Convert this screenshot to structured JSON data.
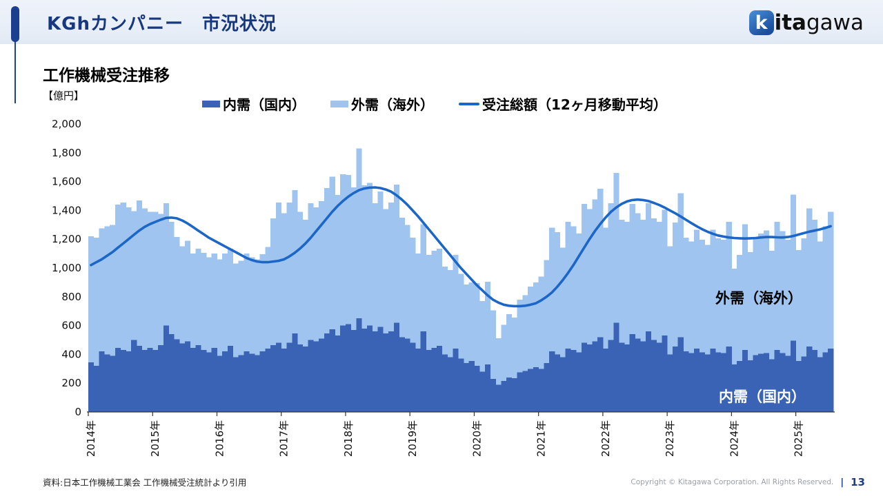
{
  "header": {
    "title": "KGhカンパニー　市況状況",
    "logo": {
      "k": "k",
      "ita": "ita",
      "gawa": "gawa"
    }
  },
  "chart": {
    "title": "工作機械受注推移",
    "unit_label": "【億円】",
    "inplot_labels": {
      "gaiju": "外需（海外）",
      "naiju": "内需（国内）"
    }
  },
  "chart_data": {
    "type": "bar",
    "combo": "stacked-monthly-bars-with-line",
    "title": "工作機械受注推移",
    "ylabel": "【億円】",
    "ylim": [
      0,
      2000
    ],
    "ytick_step": 200,
    "y_tick_labels": [
      "0",
      "200",
      "400",
      "600",
      "800",
      "1,000",
      "1,200",
      "1,400",
      "1,600",
      "1,800",
      "2,000"
    ],
    "x_start": "2014-01",
    "x_end": "2025-07",
    "months_per_year": 12,
    "categories_years": [
      "2014年",
      "2015年",
      "2016年",
      "2017年",
      "2018年",
      "2019年",
      "2020年",
      "2021年",
      "2022年",
      "2023年",
      "2024年",
      "2025年"
    ],
    "grid": false,
    "legend_position": "top",
    "series": [
      {
        "name": "内需（国内）",
        "type": "bar",
        "stack": true,
        "color": "#3a62b5",
        "values": [
          345,
          320,
          420,
          400,
          390,
          445,
          430,
          420,
          500,
          460,
          430,
          445,
          430,
          465,
          600,
          540,
          505,
          475,
          490,
          445,
          465,
          430,
          415,
          445,
          390,
          420,
          460,
          380,
          395,
          420,
          405,
          395,
          420,
          440,
          465,
          480,
          440,
          480,
          545,
          470,
          455,
          500,
          490,
          510,
          545,
          575,
          530,
          600,
          610,
          570,
          650,
          580,
          600,
          560,
          590,
          545,
          560,
          620,
          520,
          510,
          480,
          440,
          560,
          430,
          445,
          460,
          400,
          380,
          440,
          370,
          340,
          355,
          320,
          280,
          330,
          230,
          190,
          215,
          240,
          235,
          275,
          285,
          300,
          310,
          300,
          340,
          420,
          400,
          380,
          440,
          430,
          415,
          480,
          470,
          490,
          520,
          440,
          500,
          620,
          480,
          470,
          540,
          510,
          490,
          560,
          500,
          480,
          530,
          400,
          455,
          520,
          420,
          410,
          440,
          415,
          400,
          440,
          415,
          410,
          455,
          330,
          355,
          430,
          360,
          395,
          405,
          410,
          365,
          430,
          410,
          390,
          495,
          355,
          385,
          455,
          430,
          380,
          415,
          440
        ]
      },
      {
        "name": "外需（海外）",
        "type": "bar",
        "stack": true,
        "color": "#9ec4ef",
        "values": [
          875,
          890,
          855,
          890,
          910,
          995,
          1025,
          1000,
          895,
          1010,
          985,
          945,
          960,
          910,
          850,
          780,
          710,
          675,
          700,
          655,
          670,
          675,
          660,
          655,
          670,
          680,
          675,
          650,
          655,
          680,
          670,
          665,
          675,
          705,
          880,
          975,
          940,
          975,
          995,
          920,
          880,
          950,
          930,
          955,
          1010,
          1060,
          978,
          1051,
          1035,
          990,
          1180,
          995,
          990,
          890,
          940,
          865,
          895,
          960,
          830,
          790,
          730,
          660,
          745,
          660,
          675,
          675,
          610,
          605,
          650,
          590,
          545,
          545,
          575,
          490,
          575,
          475,
          322,
          390,
          440,
          420,
          505,
          525,
          570,
          590,
          640,
          715,
          860,
          850,
          760,
          880,
          860,
          825,
          965,
          940,
          985,
          1030,
          840,
          950,
          1040,
          855,
          850,
          905,
          870,
          845,
          890,
          845,
          840,
          875,
          750,
          860,
          1000,
          790,
          775,
          825,
          780,
          760,
          825,
          790,
          785,
          865,
          665,
          735,
          875,
          750,
          815,
          835,
          850,
          755,
          890,
          845,
          805,
          1015,
          770,
          820,
          960,
          905,
          805,
          875,
          950
        ]
      },
      {
        "name": "受注総額（12ヶ月移動平均）",
        "type": "line",
        "color": "#1b66c6",
        "values": [
          1020,
          1040,
          1060,
          1085,
          1110,
          1140,
          1170,
          1200,
          1230,
          1260,
          1285,
          1305,
          1320,
          1335,
          1348,
          1350,
          1345,
          1330,
          1310,
          1285,
          1260,
          1235,
          1210,
          1190,
          1170,
          1150,
          1130,
          1110,
          1090,
          1070,
          1055,
          1045,
          1040,
          1040,
          1045,
          1050,
          1060,
          1080,
          1105,
          1135,
          1170,
          1210,
          1255,
          1300,
          1345,
          1390,
          1430,
          1465,
          1495,
          1520,
          1540,
          1552,
          1558,
          1560,
          1555,
          1545,
          1530,
          1505,
          1475,
          1440,
          1400,
          1360,
          1315,
          1270,
          1225,
          1180,
          1135,
          1090,
          1045,
          1000,
          960,
          920,
          880,
          845,
          810,
          780,
          760,
          745,
          738,
          735,
          735,
          738,
          745,
          755,
          775,
          800,
          830,
          870,
          915,
          965,
          1020,
          1080,
          1140,
          1200,
          1255,
          1305,
          1350,
          1390,
          1420,
          1445,
          1462,
          1472,
          1475,
          1472,
          1465,
          1452,
          1438,
          1420,
          1400,
          1380,
          1358,
          1335,
          1312,
          1290,
          1270,
          1252,
          1238,
          1226,
          1218,
          1212,
          1208,
          1206,
          1205,
          1206,
          1208,
          1212,
          1215,
          1215,
          1213,
          1212,
          1215,
          1222,
          1232,
          1242,
          1252,
          1260,
          1268,
          1278,
          1290
        ]
      }
    ]
  },
  "footer": {
    "source": "資料:日本工作機械工業会 工作機械受注統計より引用",
    "copyright": "Copyright © Kitagawa Corporation. All Rights Reserved.",
    "separator": "|",
    "page_number": "13"
  }
}
